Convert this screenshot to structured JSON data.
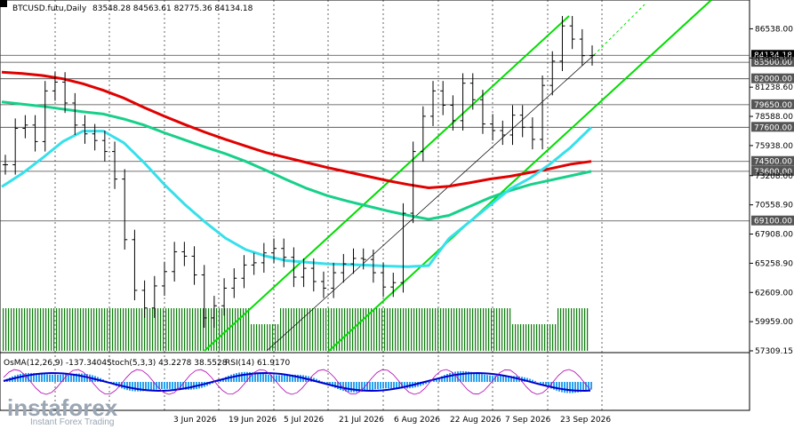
{
  "header": {
    "symbol": "BTCUSD.futu,Daily",
    "ohlc": "83548.28 84563.61 82775.36 84134.18"
  },
  "indicator_header": {
    "osma": "OsMA(12,26,9) -137.3404",
    "stoch": "Stoch(5,3,3) 43.2278 38.5528",
    "rsi": "RSI(14) 61.9170"
  },
  "watermark": {
    "brand": "instaforex",
    "tagline": "Instant Forex Trading"
  },
  "colors": {
    "ema_red": "#e00000",
    "ema_green": "#17d08a",
    "ema_cyan": "#36e0ea",
    "channel": "#00dd00",
    "volume": "#0a7a0a",
    "level_box": "#555555",
    "osma": "#2aa1f0",
    "signal": "#0000cc"
  },
  "chart_data": {
    "type": "line",
    "title": "BTCUSD.futu,Daily",
    "xlabel": "",
    "ylabel": "",
    "ylim": [
      57309.15,
      87700
    ],
    "x_ticks": [
      "3 Jun 2026",
      "19 Jun 2026",
      "5 Jul 2026",
      "21 Jul 2026",
      "6 Aug 2026",
      "22 Aug 2026",
      "7 Sep 2026",
      "23 Sep 2026"
    ],
    "y_ticks": [
      57309.15,
      59959.0,
      62609.0,
      65258.9,
      67908.0,
      70558.9,
      73208.0,
      75938.0,
      78588.0,
      81238.6,
      83888.0,
      86538.0
    ],
    "level_labels": [
      {
        "text": "84134.18",
        "value": 84134.18
      },
      {
        "text": "83500.00",
        "value": 83500
      },
      {
        "text": "82000.00",
        "value": 82000
      },
      {
        "text": "79650.00",
        "value": 79650
      },
      {
        "text": "77600.00",
        "value": 77600
      },
      {
        "text": "74500.00",
        "value": 74500
      },
      {
        "text": "73600.00",
        "value": 73600
      },
      {
        "text": "69100.00",
        "value": 69100
      }
    ],
    "series": [
      {
        "name": "EMA red",
        "values": [
          82600,
          82480,
          82300,
          82000,
          81550,
          80950,
          80250,
          79400,
          78600,
          77850,
          77150,
          76500,
          75900,
          75300,
          74850,
          74400,
          73950,
          73550,
          73150,
          72750,
          72400,
          72100,
          72250,
          72550,
          72900,
          73150,
          73500,
          73850,
          74250,
          74500
        ]
      },
      {
        "name": "EMA green",
        "values": [
          79900,
          79700,
          79500,
          79250,
          79000,
          78800,
          78350,
          77800,
          77100,
          76450,
          75800,
          75200,
          74500,
          73700,
          72850,
          72050,
          71400,
          70900,
          70450,
          70000,
          69600,
          69250,
          69600,
          70400,
          71200,
          71850,
          72400,
          72800,
          73200,
          73600
        ]
      },
      {
        "name": "EMA cyan",
        "values": [
          72200,
          73400,
          74800,
          76300,
          77250,
          77250,
          76200,
          74400,
          72400,
          70600,
          69000,
          67550,
          66500,
          65900,
          65500,
          65350,
          65200,
          65150,
          65080,
          65000,
          64950,
          65050,
          67500,
          69000,
          70500,
          72000,
          73000,
          74300,
          75800,
          77600
        ]
      }
    ],
    "close": [
      74200,
      77500,
      77800,
      76300,
      80900,
      81700,
      79800,
      77800,
      77000,
      76400,
      75400,
      72900,
      67400,
      62800,
      61200,
      63200,
      64500,
      66300,
      65900,
      64200,
      60300,
      61400,
      63000,
      63900,
      65100,
      65300,
      66200,
      66600,
      65800,
      64000,
      64800,
      63600,
      63000,
      64400,
      65200,
      65700,
      65600,
      64400,
      63100,
      63500,
      69800,
      75400,
      78600,
      80900,
      79600,
      78200,
      81600,
      80100,
      77900,
      77300,
      76900,
      78700,
      77600,
      76500,
      81400,
      83600,
      86800,
      85600,
      84100,
      84134
    ]
  }
}
